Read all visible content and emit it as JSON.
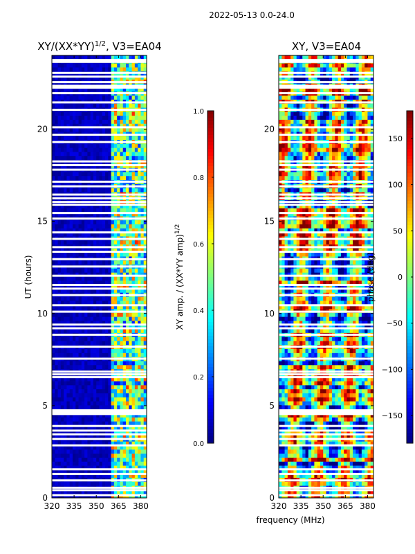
{
  "figure": {
    "suptitle": "2022-05-13 0.0-24.0",
    "xlabel": "frequency (MHz)"
  },
  "colors": {
    "jet": [
      "#00007f",
      "#0000ff",
      "#007fff",
      "#00ffff",
      "#7fff7f",
      "#ffff00",
      "#ff7f00",
      "#ff0000",
      "#7f0000"
    ]
  },
  "chart_data": [
    {
      "type": "heatmap",
      "title_prefix": "XY/(XX*YY)",
      "title_sup": "1/2",
      "title_suffix": ", V3=EA04",
      "xlabel": "",
      "ylabel": "UT (hours)",
      "xlim": [
        320,
        384
      ],
      "ylim": [
        0,
        24
      ],
      "xticks": [
        320,
        335,
        350,
        365,
        380
      ],
      "yticks": [
        0,
        5,
        10,
        15,
        20
      ],
      "colorbar": {
        "label_text": "XY amp. / (XX*YY amp)",
        "label_sup": "1/2",
        "range": [
          0.0,
          1.0
        ],
        "ticks": [
          "0.0",
          "0.2",
          "0.4",
          "0.6",
          "0.8",
          "1.0"
        ],
        "tick_values": [
          0.0,
          0.2,
          0.4,
          0.6,
          0.8,
          1.0
        ]
      },
      "description": "Normalized XY amplitude: near 0 across 320-361 MHz; elevated 0.3-0.8 in 361-384 MHz band",
      "bands": [
        {
          "from": 320,
          "to": 361,
          "level": 0.05
        },
        {
          "from": 361,
          "to": 384,
          "level": 0.45
        }
      ]
    },
    {
      "type": "heatmap",
      "title_prefix": "XY, V3=EA04",
      "title_sup": "",
      "title_suffix": "",
      "xlabel": "",
      "ylabel": "",
      "xlim": [
        320,
        384
      ],
      "ylim": [
        0,
        24
      ],
      "xticks": [
        320,
        335,
        350,
        365,
        380
      ],
      "yticks": [
        0,
        5,
        10,
        15,
        20
      ],
      "colorbar": {
        "label_text": "phase (deg)",
        "label_sup": "",
        "range": [
          -180,
          180
        ],
        "ticks": [
          "−150",
          "−100",
          "−50",
          "0",
          "50",
          "100",
          "150"
        ],
        "tick_values": [
          -150,
          -100,
          -50,
          0,
          50,
          100,
          150
        ]
      },
      "description": "XY phase across full range -180 to 180 deg with horizontal banded structure"
    }
  ],
  "flag_rows_hours": [
    0.15,
    0.42,
    0.55,
    0.95,
    1.3,
    1.55,
    2.85,
    3.2,
    3.45,
    3.65,
    3.9,
    4.55,
    4.65,
    4.75,
    6.55,
    6.7,
    6.85,
    7.55,
    8.2,
    8.85,
    9.2,
    9.4,
    10.1,
    10.45,
    11.0,
    11.35,
    11.55,
    12.05,
    12.55,
    12.95,
    13.35,
    13.6,
    14.05,
    14.4,
    15.15,
    15.45,
    15.9,
    16.05,
    16.25,
    16.45,
    16.9,
    17.15,
    17.8,
    18.05,
    18.25,
    19.3,
    19.7,
    20.1,
    21.05,
    21.45,
    21.95,
    22.25,
    22.35,
    22.55,
    22.85,
    23.05,
    23.65,
    23.75
  ]
}
